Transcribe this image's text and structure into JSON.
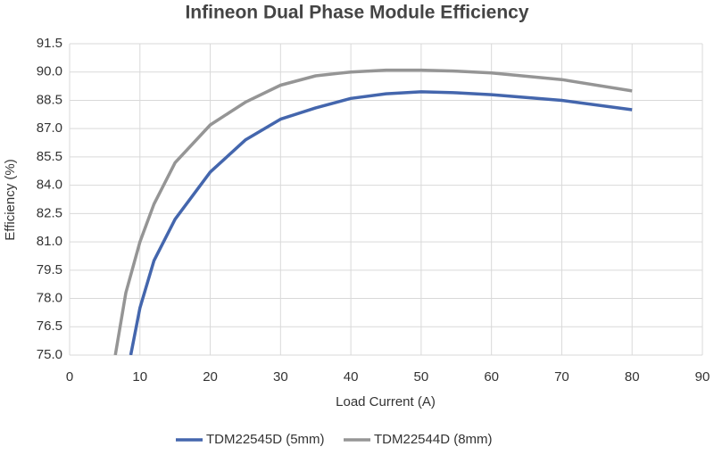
{
  "chart_data": {
    "type": "line",
    "title": "Infineon Dual Phase Module Efficiency",
    "xlabel": "Load Current (A)",
    "ylabel": "Efficiency (%)",
    "xlim": [
      0,
      90
    ],
    "xticks": [
      0,
      10,
      20,
      30,
      40,
      50,
      60,
      70,
      80,
      90
    ],
    "ylim": [
      75,
      91.5
    ],
    "yticks": [
      {
        "value": 75,
        "label": "75.0"
      },
      76.5,
      {
        "value": 78,
        "label": "78.0"
      },
      79.5,
      {
        "value": 81,
        "label": "81.0"
      },
      82.5,
      {
        "value": 84,
        "label": "84.0"
      },
      85.5,
      {
        "value": 87,
        "label": "87.0"
      },
      88.5,
      {
        "value": 90,
        "label": "90.0"
      },
      91.5
    ],
    "grid": true,
    "legend": "bottom",
    "series": [
      {
        "name": "TDM22545D (5mm)",
        "color": "#4466ad",
        "x": [
          8.7,
          10,
          12,
          15,
          20,
          25,
          30,
          35,
          40,
          45,
          50,
          55,
          60,
          70,
          80
        ],
        "values": [
          75.0,
          77.5,
          80.0,
          82.2,
          84.7,
          86.4,
          87.5,
          88.1,
          88.6,
          88.85,
          88.95,
          88.9,
          88.8,
          88.5,
          88.0
        ]
      },
      {
        "name": "TDM22544D (8mm)",
        "color": "#959595",
        "x": [
          6.5,
          8,
          10,
          12,
          15,
          20,
          25,
          30,
          35,
          40,
          45,
          50,
          55,
          60,
          70,
          80
        ],
        "values": [
          75.0,
          78.3,
          81.0,
          83.0,
          85.2,
          87.2,
          88.4,
          89.3,
          89.8,
          90.0,
          90.1,
          90.1,
          90.05,
          89.95,
          89.6,
          89.0
        ]
      }
    ]
  }
}
